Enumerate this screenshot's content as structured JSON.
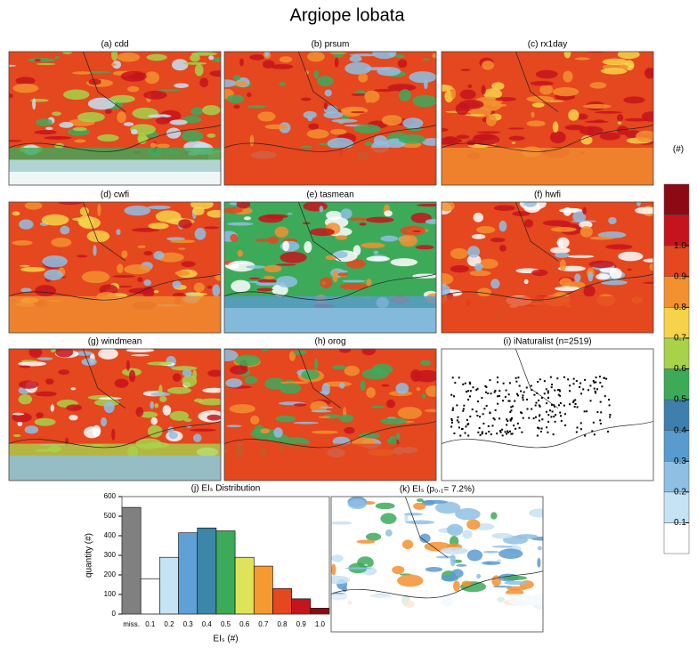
{
  "title": "Argiope lobata",
  "panels": [
    "(a) cdd",
    "(b) prsum",
    "(c) rx1day",
    "(d) cwfi",
    "(e) tasmean",
    "(f) hwfi",
    "(g) windmean",
    "(h) orog",
    "(i) iNaturalist (n=2519)",
    "(k) EIₛ (p₀.₁= 7.2%)"
  ],
  "colorbar": {
    "label": "(#)",
    "ticks": [
      0.1,
      0.2,
      0.3,
      0.4,
      0.5,
      0.6,
      0.7,
      0.8,
      0.9,
      {
        "value": 1,
        "label": "1.0"
      }
    ],
    "colors": [
      "#ffffff",
      "#c6e2f5",
      "#8fbfe3",
      "#5a9bcf",
      "#3f7fae",
      "#3daa5a",
      "#a7d24a",
      "#f7d34a",
      "#f39030",
      "#e5471e",
      "#c5141c",
      "#8c0a14"
    ]
  },
  "chart_data": {
    "type": "bar",
    "title": "(j) EIₛ Distribution",
    "categories": [
      "miss.",
      "0.1",
      "0.2",
      "0.3",
      "0.4",
      "0.5",
      "0.6",
      "0.7",
      "0.8",
      "0.9",
      "1.0"
    ],
    "values": [
      545,
      180,
      290,
      415,
      440,
      425,
      290,
      245,
      130,
      78,
      30
    ],
    "colors": [
      "#808080",
      "#ffffff",
      "#c6e2f5",
      "#5fa1d6",
      "#3c86a8",
      "#3daa5a",
      "#dfe35a",
      "#f59a30",
      "#e5471e",
      "#c5141c",
      "#8c0a14"
    ],
    "ylim": [
      0,
      600
    ],
    "yticks": [
      0,
      100,
      200,
      300,
      400,
      500,
      600
    ],
    "xlabel": "EIₛ (#)",
    "ylabel": "quantity (#)"
  }
}
